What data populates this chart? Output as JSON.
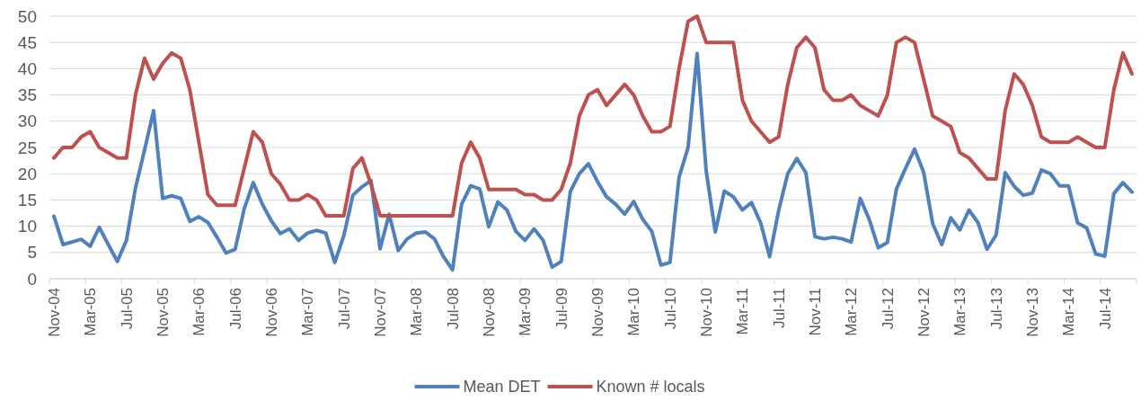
{
  "chart_data": {
    "type": "line",
    "categories": [
      "Nov-04",
      null,
      null,
      null,
      "Mar-05",
      null,
      null,
      null,
      "Jul-05",
      null,
      null,
      null,
      "Nov-05",
      null,
      null,
      null,
      "Mar-06",
      null,
      null,
      null,
      "Jul-06",
      null,
      null,
      null,
      "Nov-06",
      null,
      null,
      null,
      "Mar-07",
      null,
      null,
      null,
      "Jul-07",
      null,
      null,
      null,
      "Nov-07",
      null,
      null,
      null,
      "Mar-08",
      null,
      null,
      null,
      "Jul-08",
      null,
      null,
      null,
      "Nov-08",
      null,
      null,
      null,
      "Mar-09",
      null,
      null,
      null,
      "Jul-09",
      null,
      null,
      null,
      "Nov-09",
      null,
      null,
      null,
      "Mar-10",
      null,
      null,
      null,
      "Jul-10",
      null,
      null,
      null,
      "Nov-10",
      null,
      null,
      null,
      "Mar-11",
      null,
      null,
      null,
      "Jul-11",
      null,
      null,
      null,
      "Nov-11",
      null,
      null,
      null,
      "Mar-12",
      null,
      null,
      null,
      "Jul-12",
      null,
      null,
      null,
      "Nov-12",
      null,
      null,
      null,
      "Mar-13",
      null,
      null,
      null,
      "Jul-13",
      null,
      null,
      null,
      "Nov-13",
      null,
      null,
      null,
      "Mar-14",
      null,
      null,
      null,
      "Jul-14",
      null,
      null,
      null
    ],
    "series": [
      {
        "name": "Mean DET",
        "color": "#4f81bd",
        "values": [
          11.9,
          6.5,
          7.0,
          7.5,
          6.2,
          9.8,
          6.5,
          3.3,
          7.3,
          17.3,
          24.5,
          32,
          15.3,
          15.8,
          15.3,
          10.9,
          11.8,
          10.7,
          7.9,
          4.9,
          5.6,
          13.3,
          18.3,
          14.2,
          11,
          8.6,
          9.5,
          7.3,
          8.7,
          9.2,
          8.7,
          3.1,
          8.2,
          15.9,
          17.5,
          18.7,
          5.7,
          12.3,
          5.4,
          7.6,
          8.7,
          8.9,
          7.6,
          4.2,
          1.7,
          14.2,
          17.7,
          17.1,
          9.9,
          14.6,
          13.1,
          9,
          7.3,
          9.5,
          7.3,
          2.2,
          3.3,
          16.6,
          20,
          21.9,
          18.5,
          15.6,
          14.2,
          12.3,
          14.7,
          11.3,
          9,
          2.6,
          3.1,
          19.3,
          25,
          42.9,
          20.5,
          8.9,
          16.7,
          15.6,
          13.1,
          14.5,
          10.7,
          4.2,
          13,
          20,
          22.9,
          20.2,
          8,
          7.6,
          7.9,
          7.6,
          7,
          15.3,
          11.3,
          5.9,
          6.9,
          17.1,
          21,
          24.7,
          20.3,
          10.5,
          6.5,
          11.6,
          9.3,
          13.1,
          10.7,
          5.6,
          8.3,
          20.2,
          17.6,
          15.9,
          16.3,
          20.7,
          20,
          17.7,
          17.7,
          10.6,
          9.7,
          4.7,
          4.3,
          16.2,
          18.3,
          16.5
        ]
      },
      {
        "name": "Known # locals",
        "color": "#c0504d",
        "values": [
          23,
          25,
          25,
          27,
          28,
          25,
          24,
          23,
          23,
          35,
          42,
          38,
          41,
          43,
          42,
          36,
          26,
          16,
          14,
          14,
          14,
          21,
          28,
          26,
          20,
          18,
          15,
          15,
          16,
          15,
          12,
          12,
          12,
          21,
          23,
          18,
          12,
          12,
          12,
          12,
          12,
          12,
          12,
          12,
          12,
          22,
          26,
          23,
          17,
          17,
          17,
          17,
          16,
          16,
          15,
          15,
          17,
          22,
          31,
          35,
          36,
          33,
          35,
          37,
          35,
          31,
          28,
          28,
          29,
          40,
          49,
          50,
          45,
          45,
          45,
          45,
          34,
          30,
          28,
          26,
          27,
          37,
          44,
          46,
          44,
          36,
          34,
          34,
          35,
          33,
          32,
          31,
          35,
          45,
          46,
          45,
          38,
          31,
          30,
          29,
          24,
          23,
          21,
          19,
          19,
          32,
          39,
          37,
          33,
          27,
          26,
          26,
          26,
          27,
          26,
          25,
          25,
          36,
          43,
          39
        ]
      }
    ],
    "ylim": [
      0,
      50
    ],
    "yticks": [
      0,
      5,
      10,
      15,
      20,
      25,
      30,
      35,
      40,
      45,
      50
    ],
    "grid": "y",
    "legend": "bottom",
    "line_style": "solid",
    "marker": "none"
  }
}
